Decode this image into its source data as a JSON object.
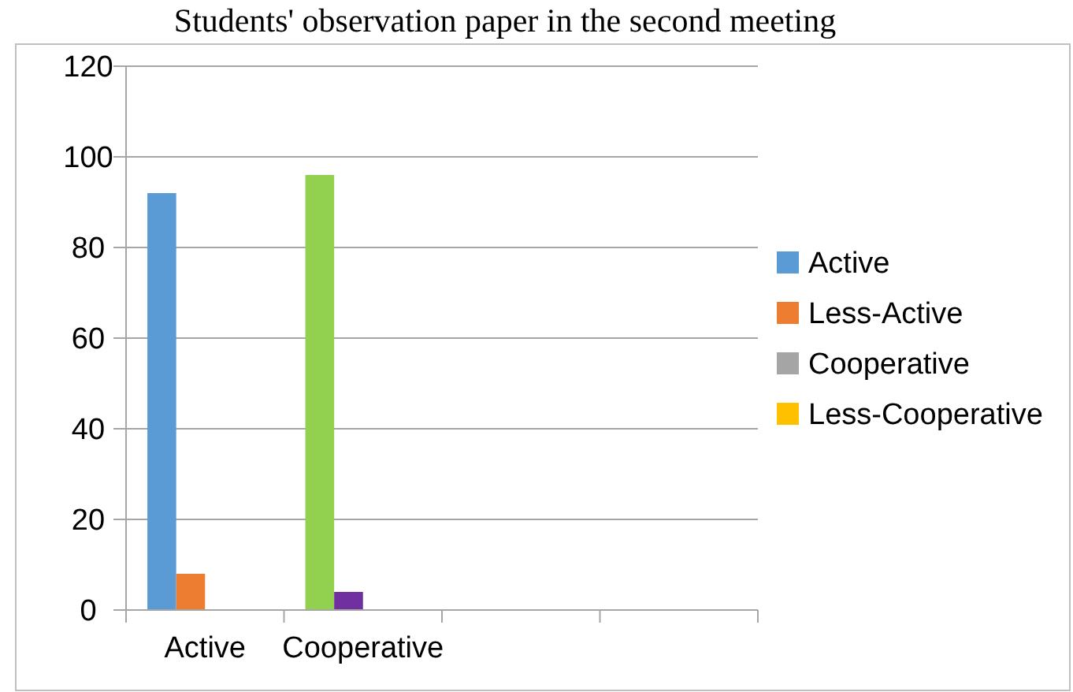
{
  "chart_data": {
    "type": "bar",
    "title": "Students' observation paper in the second meeting",
    "categories": [
      "Active",
      "Cooperative",
      null,
      null
    ],
    "series": [
      {
        "name": "Active",
        "color": "#5b9bd5",
        "values": [
          92,
          96,
          null,
          null
        ],
        "colors": [
          "#5b9bd5",
          "#92d050",
          null,
          null
        ]
      },
      {
        "name": "Less-Active",
        "color": "#ed7d31",
        "values": [
          8,
          4,
          null,
          null
        ],
        "colors": [
          "#ed7d31",
          "#7030a0",
          null,
          null
        ]
      },
      {
        "name": "Cooperative",
        "color": "#a5a5a5",
        "values": [
          null,
          null,
          null,
          null
        ]
      },
      {
        "name": "Less-Cooperative",
        "color": "#ffc000",
        "values": [
          null,
          null,
          null,
          null
        ]
      }
    ],
    "ylim": [
      0,
      120
    ],
    "yticks": [
      0,
      20,
      40,
      60,
      80,
      100,
      120
    ],
    "grid": "y",
    "legend": "right"
  }
}
